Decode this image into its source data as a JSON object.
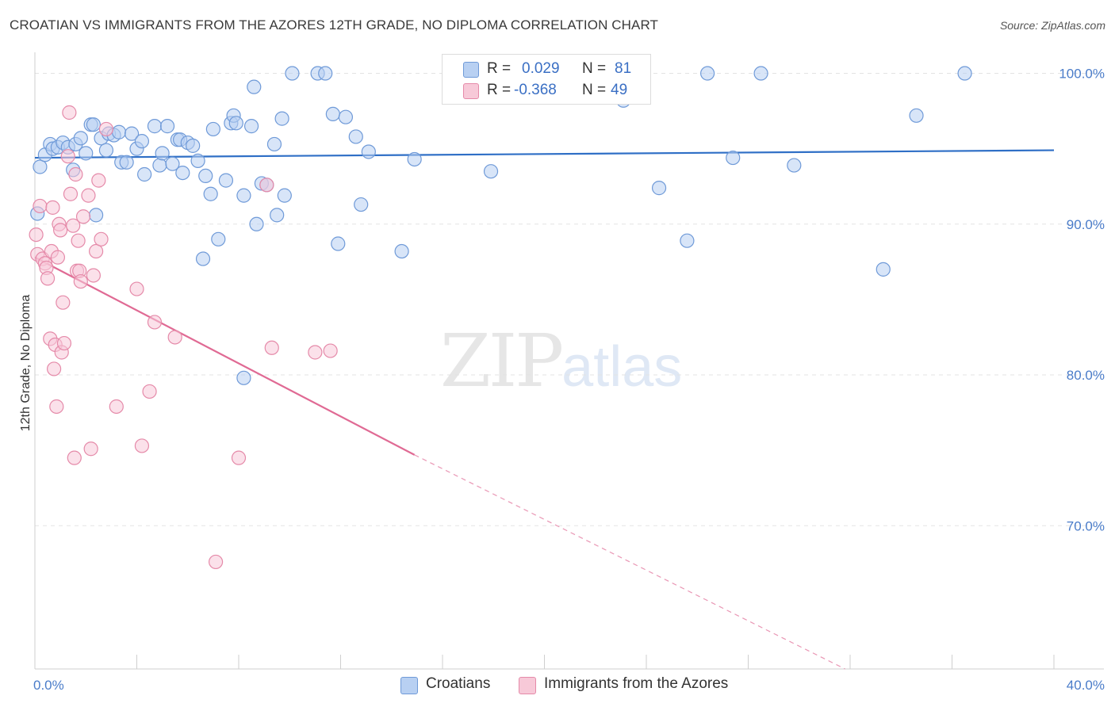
{
  "title": "CROATIAN VS IMMIGRANTS FROM THE AZORES 12TH GRADE, NO DIPLOMA CORRELATION CHART",
  "source": "Source: ZipAtlas.com",
  "watermark": {
    "zip": "ZIP",
    "atlas": "atlas"
  },
  "legend": {
    "r_label": "R =",
    "n_label": "N =",
    "rows": [
      {
        "r": "0.029",
        "n": "81",
        "color": "#a9c6ef",
        "border": "#6f9ad8"
      },
      {
        "r": "-0.368",
        "n": "49",
        "color": "#f5bfd0",
        "border": "#e58aa9"
      }
    ]
  },
  "bottom_legend": {
    "items": [
      "Croatians",
      "Immigrants from the Azores"
    ]
  },
  "chart_data": {
    "type": "scatter",
    "title": "CROATIAN VS IMMIGRANTS FROM THE AZORES 12TH GRADE, NO DIPLOMA CORRELATION CHART",
    "xlabel": "",
    "ylabel": "12th Grade, No Diploma",
    "xlim": [
      0,
      40
    ],
    "ylim": [
      60.5,
      101.5
    ],
    "x_tick_labels": [
      {
        "value": 0,
        "label": "0.0%"
      },
      {
        "value": 40,
        "label": "40.0%"
      }
    ],
    "y_tick_labels": [
      {
        "value": 100,
        "label": "100.0%"
      },
      {
        "value": 90,
        "label": "90.0%"
      },
      {
        "value": 80,
        "label": "80.0%"
      },
      {
        "value": 70,
        "label": "70.0%"
      }
    ],
    "grid": "horizontal dashed",
    "legend_position": "top-center",
    "series": [
      {
        "name": "Croatians",
        "color": "#6f9ad8",
        "fill": "#b8d0f2",
        "trend": {
          "x": [
            0,
            40
          ],
          "y": [
            94.4,
            94.9
          ],
          "style": "solid",
          "color": "#2f6fc6"
        },
        "points": [
          [
            0.1,
            90.7
          ],
          [
            0.2,
            93.8
          ],
          [
            0.4,
            94.6
          ],
          [
            0.6,
            95.3
          ],
          [
            0.7,
            95.0
          ],
          [
            0.9,
            95.1
          ],
          [
            1.1,
            95.4
          ],
          [
            1.3,
            95.1
          ],
          [
            1.5,
            93.6
          ],
          [
            1.6,
            95.3
          ],
          [
            1.8,
            95.7
          ],
          [
            2.0,
            94.7
          ],
          [
            2.2,
            96.6
          ],
          [
            2.3,
            96.6
          ],
          [
            2.4,
            90.6
          ],
          [
            2.6,
            95.7
          ],
          [
            2.8,
            94.9
          ],
          [
            2.9,
            96.0
          ],
          [
            3.1,
            95.9
          ],
          [
            3.3,
            96.1
          ],
          [
            3.4,
            94.1
          ],
          [
            3.6,
            94.1
          ],
          [
            3.8,
            96.0
          ],
          [
            4.0,
            95.0
          ],
          [
            4.2,
            95.5
          ],
          [
            4.3,
            93.3
          ],
          [
            4.7,
            96.5
          ],
          [
            4.9,
            93.9
          ],
          [
            5.0,
            94.7
          ],
          [
            5.2,
            96.5
          ],
          [
            5.4,
            94.0
          ],
          [
            5.6,
            95.6
          ],
          [
            5.7,
            95.6
          ],
          [
            5.8,
            93.4
          ],
          [
            6.0,
            95.4
          ],
          [
            6.2,
            95.2
          ],
          [
            6.4,
            94.2
          ],
          [
            6.6,
            87.7
          ],
          [
            6.7,
            93.2
          ],
          [
            6.9,
            92.0
          ],
          [
            7.0,
            96.3
          ],
          [
            7.2,
            89.0
          ],
          [
            7.5,
            92.9
          ],
          [
            7.7,
            96.7
          ],
          [
            7.8,
            97.2
          ],
          [
            7.9,
            96.7
          ],
          [
            8.2,
            91.9
          ],
          [
            8.2,
            79.8
          ],
          [
            8.5,
            96.5
          ],
          [
            8.6,
            99.1
          ],
          [
            8.7,
            90.0
          ],
          [
            8.9,
            92.7
          ],
          [
            9.1,
            92.6
          ],
          [
            9.4,
            95.3
          ],
          [
            9.5,
            90.6
          ],
          [
            9.7,
            97.0
          ],
          [
            9.8,
            91.9
          ],
          [
            10.1,
            100.0
          ],
          [
            11.1,
            100.0
          ],
          [
            11.4,
            100.0
          ],
          [
            11.7,
            97.3
          ],
          [
            11.9,
            88.7
          ],
          [
            12.2,
            97.1
          ],
          [
            12.6,
            95.8
          ],
          [
            12.8,
            91.3
          ],
          [
            13.1,
            94.8
          ],
          [
            14.4,
            88.2
          ],
          [
            14.9,
            94.3
          ],
          [
            17.7,
            99.1
          ],
          [
            17.9,
            93.5
          ],
          [
            23.0,
            100.0
          ],
          [
            23.1,
            98.2
          ],
          [
            24.5,
            92.4
          ],
          [
            25.6,
            88.9
          ],
          [
            26.4,
            100.0
          ],
          [
            27.4,
            94.4
          ],
          [
            28.5,
            100.0
          ],
          [
            29.8,
            93.9
          ],
          [
            33.3,
            87.0
          ],
          [
            34.6,
            97.2
          ],
          [
            36.5,
            100.0
          ]
        ]
      },
      {
        "name": "Immigrants from the Azores",
        "color": "#e58aa9",
        "fill": "#f7c9d8",
        "trend": {
          "x": [
            0,
            14.9
          ],
          "y": [
            87.8,
            74.7
          ],
          "style": "solid",
          "color": "#e06a94",
          "extension": {
            "x": [
              14.9,
              31.8
            ],
            "y": [
              74.7,
              60.5
            ],
            "style": "dashed"
          }
        },
        "points": [
          [
            0.05,
            89.3
          ],
          [
            0.1,
            88.0
          ],
          [
            0.2,
            91.2
          ],
          [
            0.3,
            87.7
          ],
          [
            0.4,
            87.4
          ],
          [
            0.45,
            87.1
          ],
          [
            0.5,
            86.4
          ],
          [
            0.6,
            82.4
          ],
          [
            0.65,
            88.2
          ],
          [
            0.7,
            91.1
          ],
          [
            0.75,
            80.4
          ],
          [
            0.8,
            82.0
          ],
          [
            0.85,
            77.9
          ],
          [
            0.9,
            87.8
          ],
          [
            0.95,
            90.0
          ],
          [
            1.0,
            89.6
          ],
          [
            1.05,
            81.5
          ],
          [
            1.1,
            84.8
          ],
          [
            1.15,
            82.1
          ],
          [
            1.3,
            94.5
          ],
          [
            1.35,
            97.4
          ],
          [
            1.4,
            92.0
          ],
          [
            1.5,
            89.9
          ],
          [
            1.55,
            74.5
          ],
          [
            1.6,
            93.3
          ],
          [
            1.65,
            86.9
          ],
          [
            1.7,
            88.9
          ],
          [
            1.75,
            86.9
          ],
          [
            1.8,
            86.2
          ],
          [
            1.9,
            90.5
          ],
          [
            2.1,
            91.9
          ],
          [
            2.2,
            75.1
          ],
          [
            2.3,
            86.6
          ],
          [
            2.4,
            88.2
          ],
          [
            2.5,
            92.9
          ],
          [
            2.6,
            89.0
          ],
          [
            2.8,
            96.3
          ],
          [
            3.2,
            77.9
          ],
          [
            4.0,
            85.7
          ],
          [
            4.2,
            75.3
          ],
          [
            4.5,
            78.9
          ],
          [
            4.7,
            83.5
          ],
          [
            5.5,
            82.5
          ],
          [
            7.1,
            67.6
          ],
          [
            8.0,
            74.5
          ],
          [
            9.1,
            92.6
          ],
          [
            9.3,
            81.8
          ],
          [
            11.0,
            81.5
          ],
          [
            11.6,
            81.6
          ]
        ]
      }
    ]
  }
}
